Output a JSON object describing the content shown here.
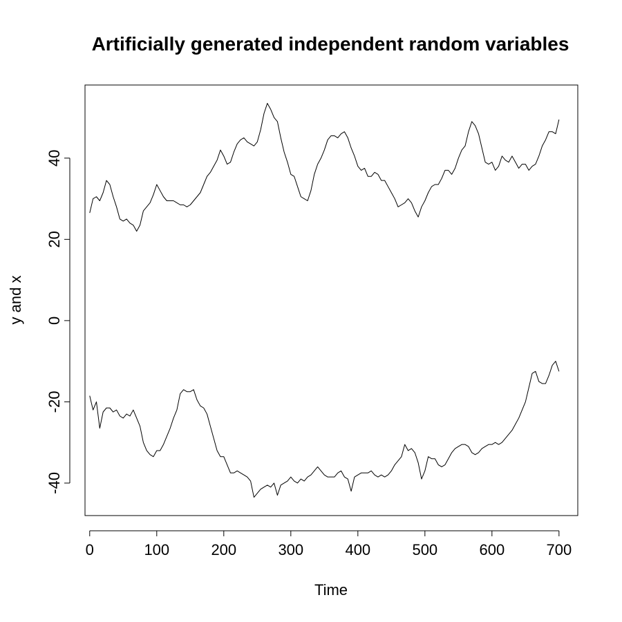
{
  "chart_data": {
    "type": "line",
    "title": "Artificially generated independent random variables",
    "xlabel": "Time",
    "ylabel": "y and x",
    "xlim": [
      -7,
      728
    ],
    "ylim": [
      -48,
      58
    ],
    "x_ticks": [
      0,
      100,
      200,
      300,
      400,
      500,
      600,
      700
    ],
    "y_ticks": [
      -40,
      -20,
      0,
      20,
      40
    ],
    "grid": false,
    "legend": "none",
    "series": [
      {
        "values": [
          [
            0,
            26.5
          ],
          [
            5,
            30
          ],
          [
            10,
            30.5
          ],
          [
            15,
            29.5
          ],
          [
            20,
            31.5
          ],
          [
            25,
            34.5
          ],
          [
            30,
            33.5
          ],
          [
            35,
            30.5
          ],
          [
            40,
            28
          ],
          [
            45,
            25
          ],
          [
            50,
            24.5
          ],
          [
            55,
            25
          ],
          [
            60,
            24
          ],
          [
            65,
            23.5
          ],
          [
            70,
            22
          ],
          [
            75,
            23.5
          ],
          [
            80,
            27
          ],
          [
            85,
            28
          ],
          [
            90,
            29
          ],
          [
            95,
            31
          ],
          [
            100,
            33.5
          ],
          [
            105,
            32
          ],
          [
            110,
            30.5
          ],
          [
            115,
            29.5
          ],
          [
            120,
            29.5
          ],
          [
            125,
            29.5
          ],
          [
            130,
            29
          ],
          [
            135,
            28.5
          ],
          [
            140,
            28.5
          ],
          [
            145,
            28
          ],
          [
            150,
            28.5
          ],
          [
            155,
            29.5
          ],
          [
            160,
            30.5
          ],
          [
            165,
            31.5
          ],
          [
            170,
            33.5
          ],
          [
            175,
            35.5
          ],
          [
            180,
            36.5
          ],
          [
            185,
            38
          ],
          [
            190,
            39.5
          ],
          [
            195,
            42
          ],
          [
            200,
            40.5
          ],
          [
            205,
            38.5
          ],
          [
            210,
            39
          ],
          [
            215,
            41.5
          ],
          [
            220,
            43.5
          ],
          [
            225,
            44.5
          ],
          [
            230,
            45
          ],
          [
            235,
            44
          ],
          [
            240,
            43.5
          ],
          [
            245,
            43
          ],
          [
            250,
            44
          ],
          [
            255,
            47
          ],
          [
            260,
            51
          ],
          [
            265,
            53.5
          ],
          [
            270,
            52
          ],
          [
            275,
            50
          ],
          [
            280,
            49
          ],
          [
            285,
            45
          ],
          [
            290,
            41.5
          ],
          [
            295,
            39
          ],
          [
            300,
            36
          ],
          [
            305,
            35.5
          ],
          [
            310,
            33
          ],
          [
            315,
            30.5
          ],
          [
            320,
            30
          ],
          [
            325,
            29.5
          ],
          [
            330,
            32
          ],
          [
            335,
            36
          ],
          [
            340,
            38.5
          ],
          [
            345,
            40
          ],
          [
            350,
            42
          ],
          [
            355,
            44.5
          ],
          [
            360,
            45.5
          ],
          [
            365,
            45.5
          ],
          [
            370,
            45
          ],
          [
            375,
            46
          ],
          [
            380,
            46.5
          ],
          [
            385,
            45
          ],
          [
            390,
            42.5
          ],
          [
            395,
            40.5
          ],
          [
            400,
            38
          ],
          [
            405,
            37
          ],
          [
            410,
            37.5
          ],
          [
            415,
            35.5
          ],
          [
            420,
            35.5
          ],
          [
            425,
            36.5
          ],
          [
            430,
            36
          ],
          [
            435,
            34.5
          ],
          [
            440,
            34.5
          ],
          [
            445,
            33
          ],
          [
            450,
            31.5
          ],
          [
            455,
            30
          ],
          [
            460,
            28
          ],
          [
            465,
            28.5
          ],
          [
            470,
            29
          ],
          [
            475,
            30
          ],
          [
            480,
            29
          ],
          [
            485,
            27
          ],
          [
            490,
            25.5
          ],
          [
            495,
            28
          ],
          [
            500,
            29.5
          ],
          [
            505,
            31.5
          ],
          [
            510,
            33
          ],
          [
            515,
            33.5
          ],
          [
            520,
            33.5
          ],
          [
            525,
            35
          ],
          [
            530,
            37
          ],
          [
            535,
            37
          ],
          [
            540,
            36
          ],
          [
            545,
            37.5
          ],
          [
            550,
            40
          ],
          [
            555,
            42
          ],
          [
            560,
            43
          ],
          [
            565,
            46.5
          ],
          [
            570,
            49
          ],
          [
            575,
            48
          ],
          [
            580,
            46
          ],
          [
            585,
            42.5
          ],
          [
            590,
            39
          ],
          [
            595,
            38.5
          ],
          [
            600,
            39
          ],
          [
            605,
            37
          ],
          [
            610,
            38
          ],
          [
            615,
            40.5
          ],
          [
            620,
            39.5
          ],
          [
            625,
            39
          ],
          [
            630,
            40.5
          ],
          [
            635,
            39
          ],
          [
            640,
            37.5
          ],
          [
            645,
            38.5
          ],
          [
            650,
            38.5
          ],
          [
            655,
            37
          ],
          [
            660,
            38
          ],
          [
            665,
            38.5
          ],
          [
            670,
            40.5
          ],
          [
            675,
            43
          ],
          [
            680,
            44.5
          ],
          [
            685,
            46.5
          ],
          [
            690,
            46.5
          ],
          [
            695,
            46
          ],
          [
            700,
            49.5
          ]
        ]
      },
      {
        "values": [
          [
            0,
            -18.5
          ],
          [
            5,
            -22
          ],
          [
            10,
            -20
          ],
          [
            15,
            -26.5
          ],
          [
            20,
            -22.5
          ],
          [
            25,
            -21.5
          ],
          [
            30,
            -21.5
          ],
          [
            35,
            -22.5
          ],
          [
            40,
            -22
          ],
          [
            45,
            -23.5
          ],
          [
            50,
            -24
          ],
          [
            55,
            -23
          ],
          [
            60,
            -23.5
          ],
          [
            65,
            -22
          ],
          [
            70,
            -24
          ],
          [
            75,
            -26
          ],
          [
            80,
            -30
          ],
          [
            85,
            -32
          ],
          [
            90,
            -33
          ],
          [
            95,
            -33.5
          ],
          [
            100,
            -32
          ],
          [
            105,
            -32
          ],
          [
            110,
            -30.5
          ],
          [
            115,
            -28.5
          ],
          [
            120,
            -26.5
          ],
          [
            125,
            -24
          ],
          [
            130,
            -22
          ],
          [
            135,
            -18
          ],
          [
            140,
            -17
          ],
          [
            145,
            -17.5
          ],
          [
            150,
            -17.5
          ],
          [
            155,
            -17
          ],
          [
            160,
            -19.5
          ],
          [
            165,
            -21
          ],
          [
            170,
            -21.5
          ],
          [
            175,
            -23
          ],
          [
            180,
            -26
          ],
          [
            185,
            -29
          ],
          [
            190,
            -32
          ],
          [
            195,
            -33.5
          ],
          [
            200,
            -33.5
          ],
          [
            205,
            -35.5
          ],
          [
            210,
            -37.5
          ],
          [
            215,
            -37.5
          ],
          [
            220,
            -37
          ],
          [
            225,
            -37.5
          ],
          [
            230,
            -38
          ],
          [
            235,
            -38.5
          ],
          [
            240,
            -39.5
          ],
          [
            245,
            -43.5
          ],
          [
            250,
            -42.5
          ],
          [
            255,
            -41.5
          ],
          [
            260,
            -41
          ],
          [
            265,
            -40.5
          ],
          [
            270,
            -41
          ],
          [
            275,
            -40
          ],
          [
            280,
            -43
          ],
          [
            285,
            -40.5
          ],
          [
            290,
            -40
          ],
          [
            295,
            -39.5
          ],
          [
            300,
            -38.5
          ],
          [
            305,
            -39.5
          ],
          [
            310,
            -40
          ],
          [
            315,
            -39
          ],
          [
            320,
            -39.5
          ],
          [
            325,
            -38.5
          ],
          [
            330,
            -38
          ],
          [
            335,
            -37
          ],
          [
            340,
            -36
          ],
          [
            345,
            -37
          ],
          [
            350,
            -38
          ],
          [
            355,
            -38.5
          ],
          [
            360,
            -38.5
          ],
          [
            365,
            -38.5
          ],
          [
            370,
            -37.5
          ],
          [
            375,
            -37
          ],
          [
            380,
            -38.5
          ],
          [
            385,
            -39
          ],
          [
            390,
            -42
          ],
          [
            395,
            -38.5
          ],
          [
            400,
            -38
          ],
          [
            405,
            -37.5
          ],
          [
            410,
            -37.5
          ],
          [
            415,
            -37.5
          ],
          [
            420,
            -37
          ],
          [
            425,
            -38
          ],
          [
            430,
            -38.5
          ],
          [
            435,
            -38
          ],
          [
            440,
            -38.5
          ],
          [
            445,
            -38
          ],
          [
            450,
            -37
          ],
          [
            455,
            -35.5
          ],
          [
            460,
            -34.5
          ],
          [
            465,
            -33.5
          ],
          [
            470,
            -30.5
          ],
          [
            475,
            -32
          ],
          [
            480,
            -31.5
          ],
          [
            485,
            -32.5
          ],
          [
            490,
            -35
          ],
          [
            495,
            -39
          ],
          [
            500,
            -37
          ],
          [
            505,
            -33.5
          ],
          [
            510,
            -34
          ],
          [
            515,
            -34
          ],
          [
            520,
            -35.5
          ],
          [
            525,
            -36
          ],
          [
            530,
            -35.5
          ],
          [
            535,
            -34
          ],
          [
            540,
            -32.5
          ],
          [
            545,
            -31.5
          ],
          [
            550,
            -31
          ],
          [
            555,
            -30.5
          ],
          [
            560,
            -30.5
          ],
          [
            565,
            -31
          ],
          [
            570,
            -32.5
          ],
          [
            575,
            -33
          ],
          [
            580,
            -32.5
          ],
          [
            585,
            -31.5
          ],
          [
            590,
            -31
          ],
          [
            595,
            -30.5
          ],
          [
            600,
            -30.5
          ],
          [
            605,
            -30
          ],
          [
            610,
            -30.5
          ],
          [
            615,
            -30
          ],
          [
            620,
            -29
          ],
          [
            625,
            -28
          ],
          [
            630,
            -27
          ],
          [
            635,
            -25.5
          ],
          [
            640,
            -24
          ],
          [
            645,
            -22
          ],
          [
            650,
            -20
          ],
          [
            655,
            -16.5
          ],
          [
            660,
            -13
          ],
          [
            665,
            -12.5
          ],
          [
            670,
            -15
          ],
          [
            675,
            -15.5
          ],
          [
            680,
            -15.5
          ],
          [
            685,
            -13.5
          ],
          [
            690,
            -11
          ],
          [
            695,
            -10
          ],
          [
            700,
            -12.5
          ]
        ]
      }
    ]
  }
}
